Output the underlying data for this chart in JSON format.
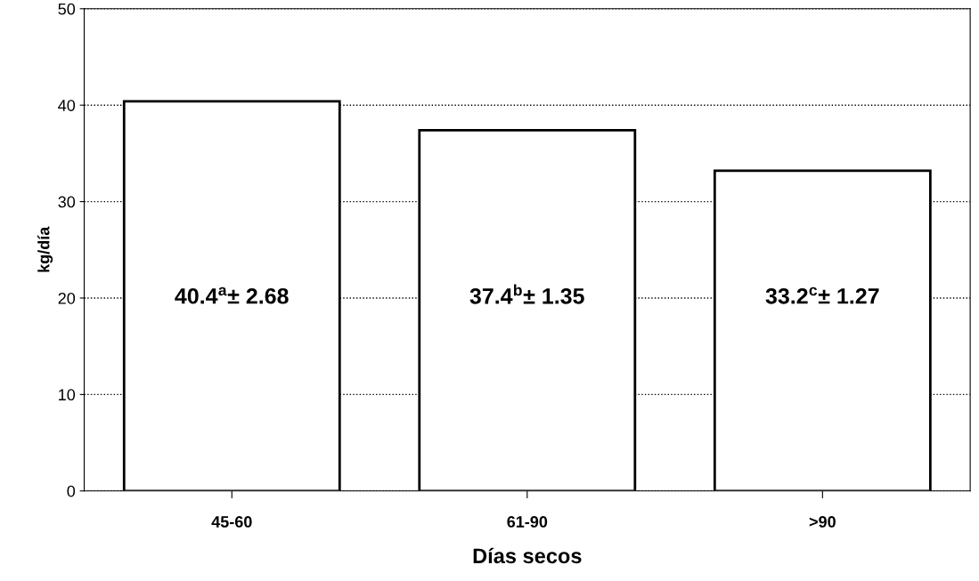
{
  "chart_data": {
    "type": "bar",
    "xlabel": "Días secos",
    "ylabel": "kg/día",
    "categories": [
      "45-60",
      "61-90",
      ">90"
    ],
    "values": [
      40.4,
      37.4,
      33.2
    ],
    "value_labels": [
      "40.4$^{a}$± 2.68",
      "37.4$^{b}$± 1.35",
      "33.2$^{c}$± 1.27"
    ],
    "color": "#ffffff",
    "ylim": [
      0,
      50
    ],
    "yticks": [
      0,
      10,
      20,
      30,
      40,
      50
    ],
    "grid": "y"
  }
}
